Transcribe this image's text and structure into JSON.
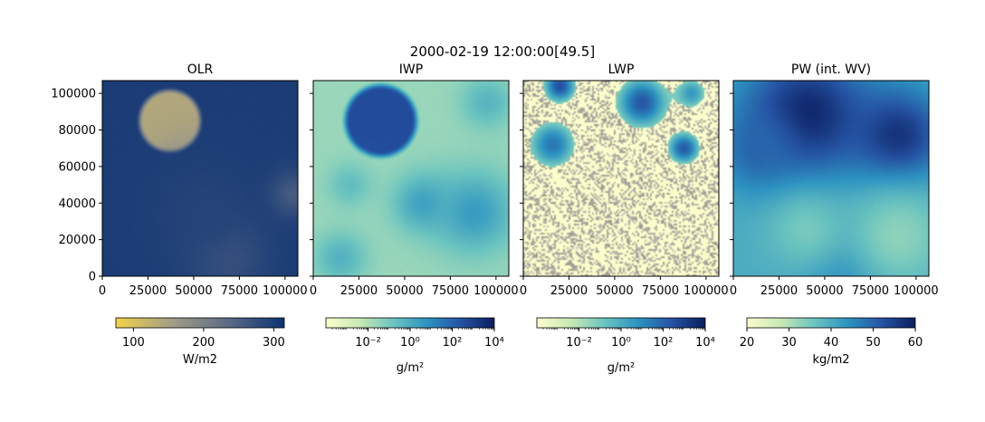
{
  "suptitle": "2000-02-19 12:00:00[49.5]",
  "panels": [
    {
      "title": "OLR",
      "field": "olr",
      "show_yticks": true,
      "colorbar": {
        "label": "W/m2",
        "scale": "linear",
        "range": [
          75,
          315
        ],
        "ticks": [
          100,
          200,
          300
        ],
        "tick_labels": [
          "100",
          "200",
          "300"
        ],
        "colors": [
          "#f3d44a",
          "#a39d86",
          "#5a6b86",
          "#0d3272"
        ]
      }
    },
    {
      "title": "IWP",
      "field": "iwp",
      "show_yticks": false,
      "colorbar": {
        "label": "g/m²",
        "scale": "log",
        "range": [
          -4,
          4
        ],
        "ticks": [
          -2,
          0,
          2,
          4
        ],
        "tick_labels": [
          "10⁻²",
          "10⁰",
          "10²",
          "10⁴"
        ],
        "colors": [
          "#fcfdcc",
          "#c8e9b5",
          "#6bc4bf",
          "#2d93c1",
          "#2553a3",
          "#0b1d5e"
        ]
      }
    },
    {
      "title": "LWP",
      "field": "lwp",
      "show_yticks": false,
      "colorbar": {
        "label": "g/m²",
        "scale": "log",
        "range": [
          -4,
          4
        ],
        "ticks": [
          -2,
          0,
          2,
          4
        ],
        "tick_labels": [
          "10⁻²",
          "10⁰",
          "10²",
          "10⁴"
        ],
        "colors": [
          "#fcfdcc",
          "#c8e9b5",
          "#6bc4bf",
          "#2d93c1",
          "#2553a3",
          "#0b1d5e"
        ]
      }
    },
    {
      "title": "PW (int. WV)",
      "field": "pw",
      "show_yticks": false,
      "colorbar": {
        "label": "kg/m2",
        "scale": "linear",
        "range": [
          20,
          60
        ],
        "ticks": [
          20,
          30,
          40,
          50,
          60
        ],
        "tick_labels": [
          "20",
          "30",
          "40",
          "50",
          "60"
        ],
        "colors": [
          "#fcfdcc",
          "#c8e9b5",
          "#6bc4bf",
          "#2d93c1",
          "#2553a3",
          "#0b1d5e"
        ]
      }
    }
  ],
  "chart_data": {
    "type": "heatmap",
    "title": "2000-02-19 12:00:00[49.5]",
    "x_ticks": [
      0,
      25000,
      50000,
      75000,
      100000
    ],
    "x_tick_labels": [
      "0",
      "25000",
      "50000",
      "75000",
      "100000"
    ],
    "y_ticks": [
      0,
      20000,
      40000,
      60000,
      80000,
      100000
    ],
    "y_tick_labels": [
      "0",
      "20000",
      "40000",
      "60000",
      "80000",
      "100000"
    ],
    "xlim": [
      0,
      107000
    ],
    "ylim": [
      0,
      107000
    ],
    "fields": [
      {
        "name": "OLR",
        "units": "W/m2",
        "background": 300,
        "features": [
          {
            "shape": "disk",
            "x": 37000,
            "y": 85000,
            "r": 17000,
            "value": 140
          },
          {
            "shape": "blob",
            "x": 68000,
            "y": 12000,
            "r": 20000,
            "value": 265
          },
          {
            "shape": "blob",
            "x": 104000,
            "y": 45000,
            "r": 12000,
            "value": 255
          },
          {
            "shape": "blob",
            "x": 55000,
            "y": 35000,
            "r": 28000,
            "value": 290
          }
        ]
      },
      {
        "name": "IWP",
        "units": "g/m2",
        "log10_background": -1.6,
        "features": [
          {
            "shape": "disk",
            "x": 37000,
            "y": 85000,
            "r": 20000,
            "log10_value": 2.6
          },
          {
            "shape": "blob",
            "x": 88000,
            "y": 35000,
            "r": 22000,
            "log10_value": 0.5
          },
          {
            "shape": "blob",
            "x": 60000,
            "y": 40000,
            "r": 16000,
            "log10_value": 0.3
          },
          {
            "shape": "blob",
            "x": 15000,
            "y": 10000,
            "r": 14000,
            "log10_value": -0.2
          },
          {
            "shape": "blob",
            "x": 95000,
            "y": 95000,
            "r": 14000,
            "log10_value": -0.3
          },
          {
            "shape": "blob",
            "x": 20000,
            "y": 50000,
            "r": 12000,
            "log10_value": -0.6
          }
        ]
      },
      {
        "name": "LWP",
        "units": "g/m2",
        "log10_background": -4,
        "features": [
          {
            "shape": "blob",
            "x": 16000,
            "y": 72000,
            "r": 15000,
            "log10_value": 1.5
          },
          {
            "shape": "blob",
            "x": 65000,
            "y": 95000,
            "r": 16000,
            "log10_value": 2.3
          },
          {
            "shape": "blob",
            "x": 88000,
            "y": 70000,
            "r": 10000,
            "log10_value": 2.2
          },
          {
            "shape": "blob",
            "x": 20000,
            "y": 104000,
            "r": 10000,
            "log10_value": 2.5
          },
          {
            "shape": "blob",
            "x": 92000,
            "y": 100000,
            "r": 10000,
            "log10_value": 0.6
          }
        ]
      },
      {
        "name": "PW (int. WV)",
        "units": "kg/m2",
        "background": 40,
        "features": [
          {
            "shape": "blob",
            "x": 40000,
            "y": 88000,
            "r": 34000,
            "value": 59
          },
          {
            "shape": "blob",
            "x": 90000,
            "y": 76000,
            "r": 26000,
            "value": 57
          },
          {
            "shape": "blob",
            "x": 15000,
            "y": 70000,
            "r": 22000,
            "value": 50
          },
          {
            "shape": "blob",
            "x": 60000,
            "y": 5000,
            "r": 22000,
            "value": 46
          },
          {
            "shape": "blob",
            "x": 90000,
            "y": 22000,
            "r": 28000,
            "value": 33
          },
          {
            "shape": "blob",
            "x": 40000,
            "y": 25000,
            "r": 22000,
            "value": 35
          }
        ]
      }
    ]
  }
}
